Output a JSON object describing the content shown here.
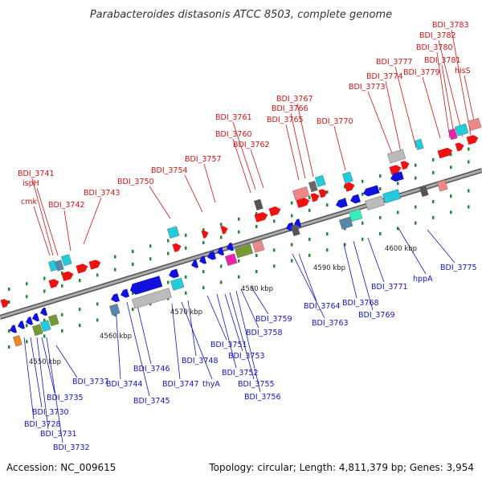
{
  "title": "Parabacteroides distasonis ATCC 8503, complete genome",
  "footer": {
    "accession": "Accession: NC_009615",
    "summary": "Topology: circular; Length: 4,811,379 bp; Genes: 3,954"
  },
  "colors": {
    "forward": "#ee1111",
    "reverse": "#1111dd",
    "backbone": "#888888",
    "cyan": "#22ccdd",
    "gray": "#bbbbbb",
    "olive": "#779933",
    "magenta": "#ee22aa",
    "salmon": "#ee8888",
    "steel": "#5588aa",
    "green_tick": "#228833"
  },
  "scale_labels": [
    "4550 kbp",
    "4560 kbp",
    "4570 kbp",
    "4580 kbp",
    "4590 kbp",
    "4600 kbp"
  ],
  "top_labels": [
    "BDI_3741",
    "ispH",
    "cmk",
    "BDI_3742",
    "BDI_3743",
    "BDI_3750",
    "BDI_3754",
    "BDI_3757",
    "BDI_3761",
    "BDI_3760",
    "BDI_3762",
    "BDI_3765",
    "BDI_3766",
    "BDI_3767",
    "BDI_3770",
    "BDI_3773",
    "BDI_3774",
    "BDI_3777",
    "BDI_3779",
    "BDI_3781",
    "BDI_3780",
    "BDI_3782",
    "BDI_3783",
    "hisS"
  ],
  "bottom_labels": [
    "BDI_3737",
    "BDI_3735",
    "BDI_3730",
    "BDI_3728",
    "BDI_3731",
    "BDI_3732",
    "BDI_3744",
    "BDI_3745",
    "BDI_3746",
    "BDI_3747",
    "thyA",
    "BDI_3748",
    "BDI_3751",
    "BDI_3752",
    "BDI_3753",
    "BDI_3755",
    "BDI_3756",
    "BDI_3758",
    "BDI_3759",
    "BDI_3764",
    "BDI_3763",
    "BDI_3768",
    "BDI_3769",
    "BDI_3771",
    "hppA",
    "BDI_3775"
  ]
}
